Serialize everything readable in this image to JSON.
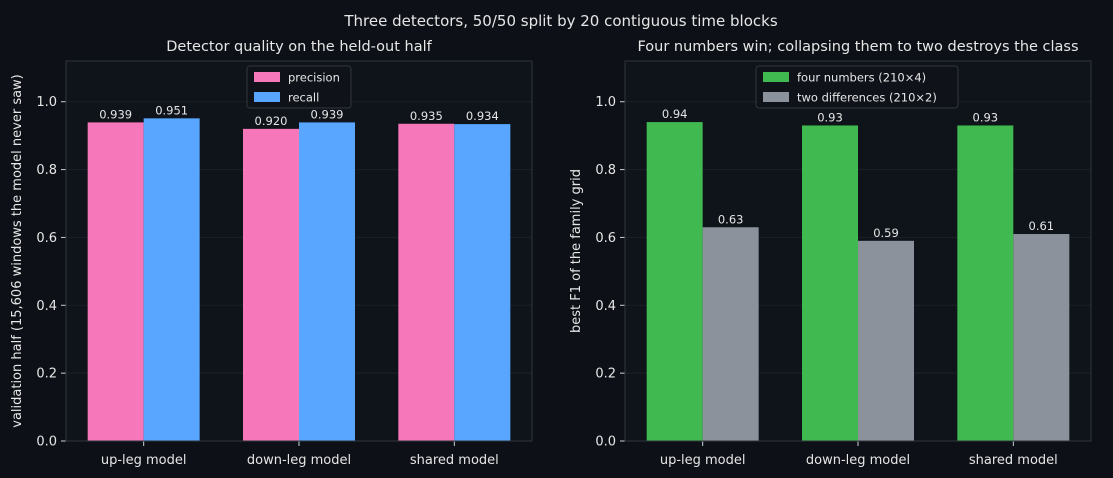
{
  "figure_title": "Three detectors, 50/50 split by 20 contiguous time blocks",
  "chart_data": [
    {
      "type": "bar",
      "title": "Detector quality on the held-out half",
      "xlabel": "",
      "ylabel": "validation half (15,606 windows the model never saw)",
      "categories": [
        "up-leg model",
        "down-leg model",
        "shared model"
      ],
      "ylim": [
        0,
        1.12
      ],
      "yticks": [
        "0.0",
        "0.2",
        "0.4",
        "0.6",
        "0.8",
        "1.0"
      ],
      "grid": true,
      "legend_position": "top-center",
      "series": [
        {
          "name": "precision",
          "color": "#f778ba",
          "values": [
            0.939,
            0.92,
            0.935
          ],
          "labels": [
            "0.939",
            "0.920",
            "0.935"
          ]
        },
        {
          "name": "recall",
          "color": "#58a6ff",
          "values": [
            0.951,
            0.939,
            0.934
          ],
          "labels": [
            "0.951",
            "0.939",
            "0.934"
          ]
        }
      ]
    },
    {
      "type": "bar",
      "title": "Four numbers win; collapsing them to two destroys the class",
      "xlabel": "",
      "ylabel": "best F1 of the family grid",
      "categories": [
        "up-leg model",
        "down-leg model",
        "shared model"
      ],
      "ylim": [
        0,
        1.12
      ],
      "yticks": [
        "0.0",
        "0.2",
        "0.4",
        "0.6",
        "0.8",
        "1.0"
      ],
      "grid": true,
      "legend_position": "top-center",
      "series": [
        {
          "name": "four numbers (210×4)",
          "color": "#3fb950",
          "values": [
            0.94,
            0.93,
            0.93
          ],
          "labels": [
            "0.94",
            "0.93",
            "0.93"
          ]
        },
        {
          "name": "two differences (210×2)",
          "color": "#8b929c",
          "values": [
            0.63,
            0.59,
            0.61
          ],
          "labels": [
            "0.63",
            "0.59",
            "0.61"
          ]
        }
      ]
    }
  ]
}
